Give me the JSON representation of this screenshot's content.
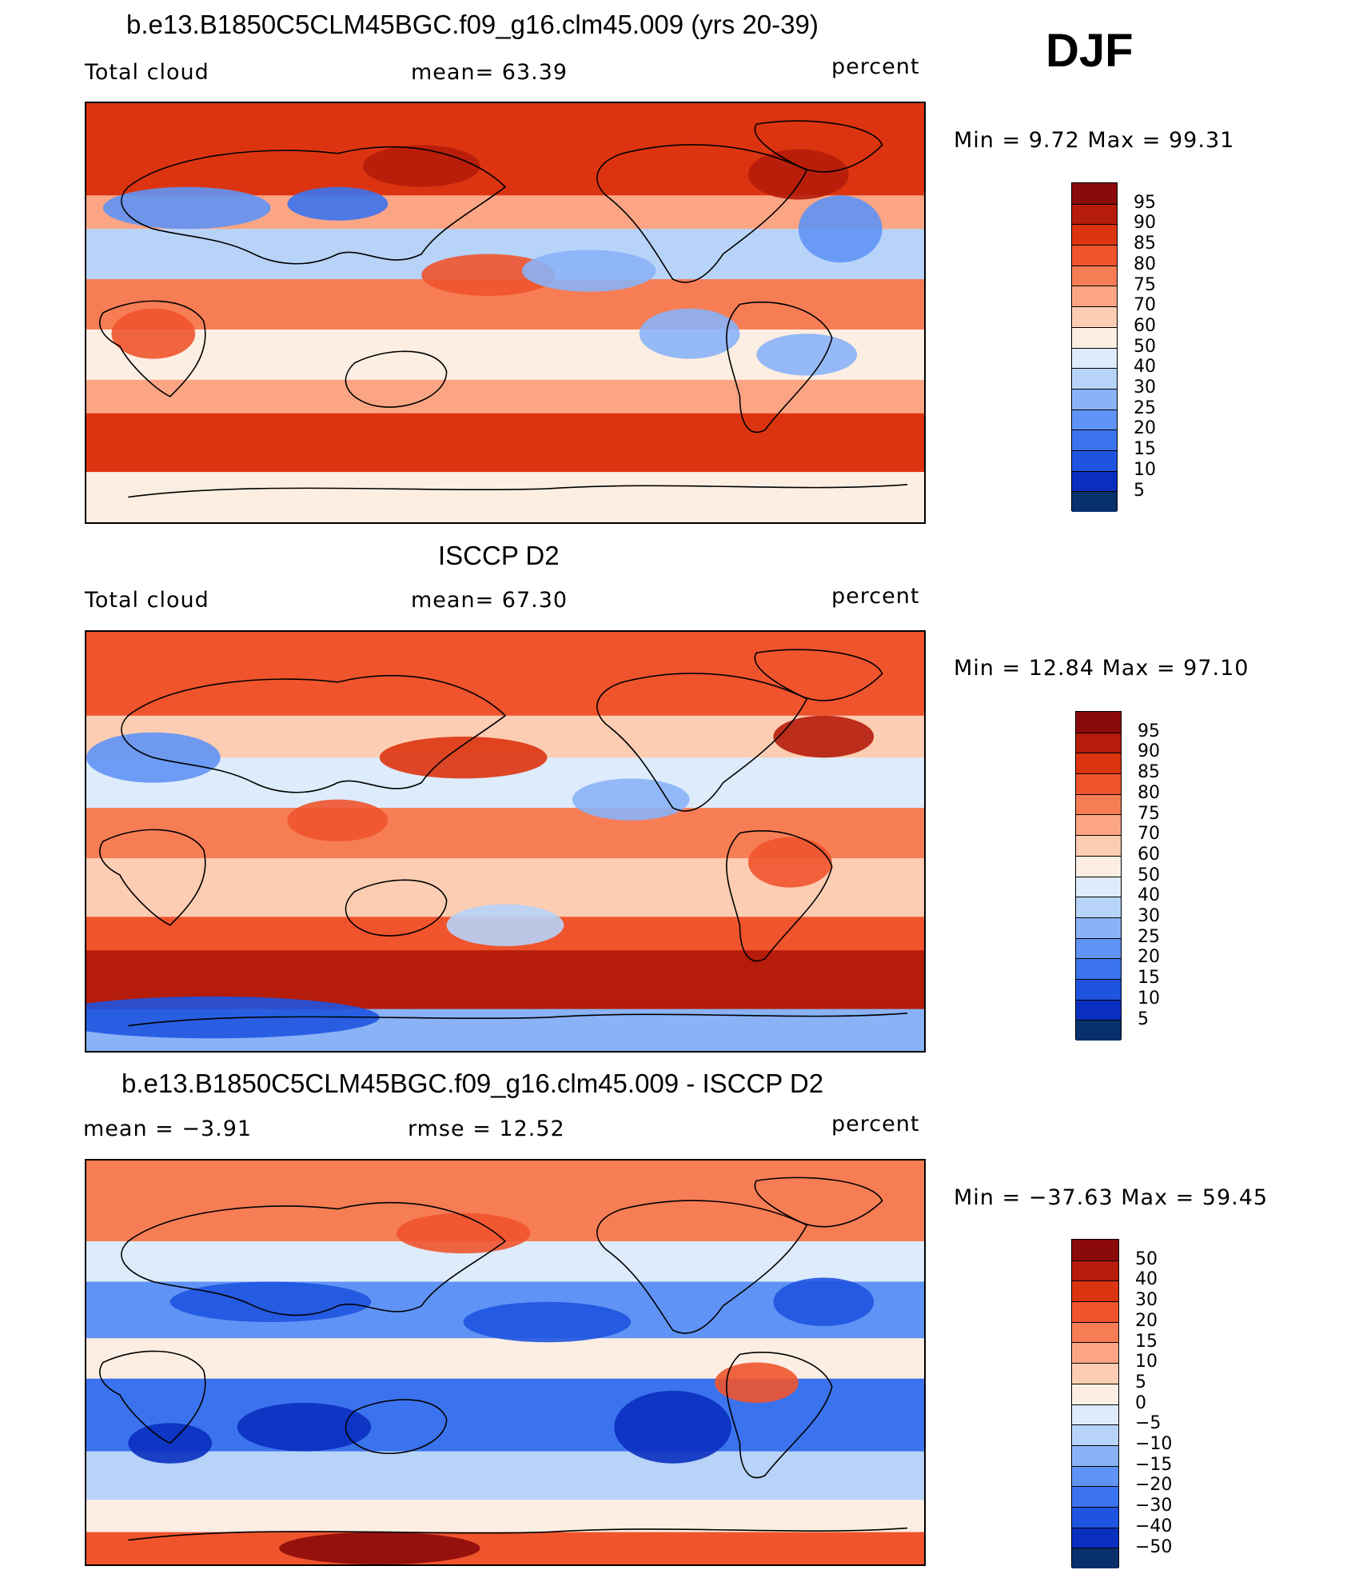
{
  "season": "DJF",
  "colors": {
    "abs_scale": [
      "#08306b",
      "#0a2fbf",
      "#1f54e0",
      "#3b73ee",
      "#5f93f5",
      "#89b2f7",
      "#b7d3f8",
      "#ddebfb",
      "#fdeee3",
      "#fccdb2",
      "#fba585",
      "#f77d55",
      "#f0542d",
      "#dc3410",
      "#b51c0a",
      "#8b0a0a"
    ],
    "diff_scale": [
      "#08306b",
      "#0a2fbf",
      "#1f54e0",
      "#3b73ee",
      "#5f93f5",
      "#89b2f7",
      "#b7d3f8",
      "#ddebfb",
      "#fdeee3",
      "#fccdb2",
      "#fba585",
      "#f77d55",
      "#f0542d",
      "#dc3410",
      "#b51c0a",
      "#8b0a0a"
    ]
  },
  "chart_data": [
    {
      "type": "heatmap",
      "title": "b.e13.B1850C5CLM45BGC.f09_g16.clm45.009 (yrs 20-39)",
      "left_label": "Total cloud",
      "center_label": "mean=   63.39",
      "units": "percent",
      "mean": 63.39,
      "minmax": "Min =    9.72 Max =   99.31",
      "min": 9.72,
      "max": 99.31,
      "levels": [
        "5",
        "10",
        "15",
        "20",
        "25",
        "30",
        "40",
        "50",
        "60",
        "70",
        "75",
        "80",
        "85",
        "90",
        "95"
      ]
    },
    {
      "type": "heatmap",
      "title": "ISCCP D2",
      "left_label": "Total cloud",
      "center_label": "mean=   67.30",
      "units": "percent",
      "mean": 67.3,
      "minmax": "Min =   12.84 Max =   97.10",
      "min": 12.84,
      "max": 97.1,
      "levels": [
        "5",
        "10",
        "15",
        "20",
        "25",
        "30",
        "40",
        "50",
        "60",
        "70",
        "75",
        "80",
        "85",
        "90",
        "95"
      ]
    },
    {
      "type": "heatmap",
      "title": "b.e13.B1850C5CLM45BGC.f09_g16.clm45.009 - ISCCP D2",
      "left_label": "mean =   −3.91",
      "center_label": "rmse =   12.52",
      "units": "percent",
      "mean": -3.91,
      "rmse": 12.52,
      "minmax": "Min = −37.63 Max =   59.45",
      "min": -37.63,
      "max": 59.45,
      "levels": [
        "−50",
        "−40",
        "−30",
        "−20",
        "−15",
        "−10",
        "−5",
        "0",
        "5",
        "10",
        "15",
        "20",
        "30",
        "40",
        "50"
      ]
    }
  ]
}
